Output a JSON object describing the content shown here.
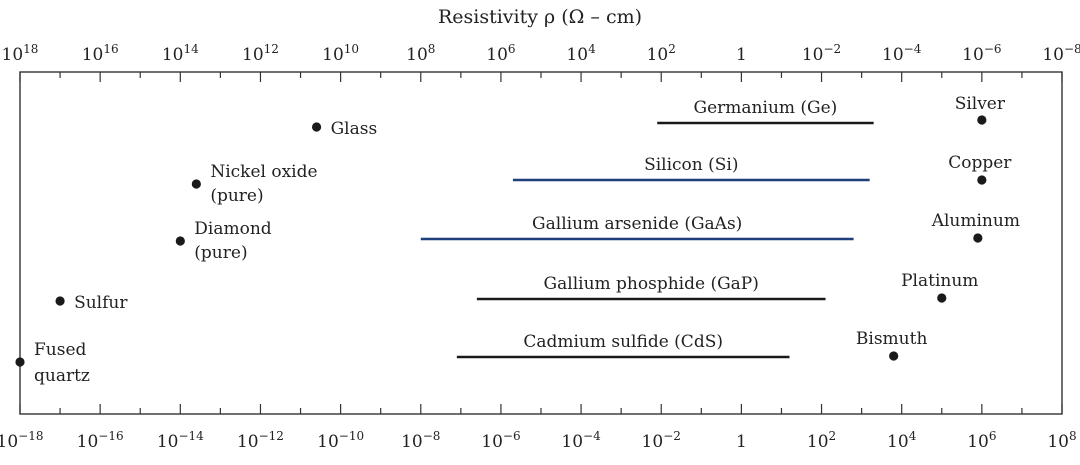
{
  "title": "Resistivity ρ (Ω – cm)",
  "top_axis_ticks": [
    "10^18",
    "10^16",
    "10^14",
    "10^12",
    "10^10",
    "10^8",
    "10^6",
    "10^4",
    "10^2",
    "1",
    "10^-2",
    "10^-4",
    "10^-6",
    "10^-8"
  ],
  "bottom_axis_ticks": [
    "10^-18",
    "10^-16",
    "10^-14",
    "10^-12",
    "10^-10",
    "10^-8",
    "10^-6",
    "10^-4",
    "10^-2",
    "1",
    "10^2",
    "10^4",
    "10^6",
    "10^8"
  ],
  "colors": {
    "axis": "#333333",
    "black_bar": "#1a1a1a",
    "blue_bar": "#1f3f7a",
    "text": "#222222"
  },
  "chart_data": {
    "type": "scatter",
    "x_scale": "log10",
    "x_range": [
      -18,
      8
    ],
    "points": [
      {
        "label": "Glass",
        "x": -10.6,
        "row": 1
      },
      {
        "label": "Nickel oxide (pure)",
        "x": -13.6,
        "row": 2
      },
      {
        "label": "Diamond (pure)",
        "x": -14.0,
        "row": 3
      },
      {
        "label": "Sulfur",
        "x": -17.0,
        "row": 4
      },
      {
        "label": "Fused quartz",
        "x": -18.0,
        "row": 5
      },
      {
        "label": "Silver",
        "x": 6.0,
        "row": 0
      },
      {
        "label": "Copper",
        "x": 6.0,
        "row": 1
      },
      {
        "label": "Aluminum",
        "x": 5.9,
        "row": 2
      },
      {
        "label": "Platinum",
        "x": 5.0,
        "row": 3
      },
      {
        "label": "Bismuth",
        "x": 3.8,
        "row": 4
      }
    ],
    "ranges": [
      {
        "label": "Germanium (Ge)",
        "x1": -2.1,
        "x2": 3.3,
        "color": "black"
      },
      {
        "label": "Silicon (Si)",
        "x1": -5.7,
        "x2": 3.2,
        "color": "blue"
      },
      {
        "label": "Gallium arsenide (GaAs)",
        "x1": -8.0,
        "x2": 2.8,
        "color": "blue"
      },
      {
        "label": "Gallium phosphide (GaP)",
        "x1": -6.6,
        "x2": 2.1,
        "color": "black"
      },
      {
        "label": "Cadmium sulfide (CdS)",
        "x1": -7.1,
        "x2": 1.2,
        "color": "black"
      }
    ]
  }
}
